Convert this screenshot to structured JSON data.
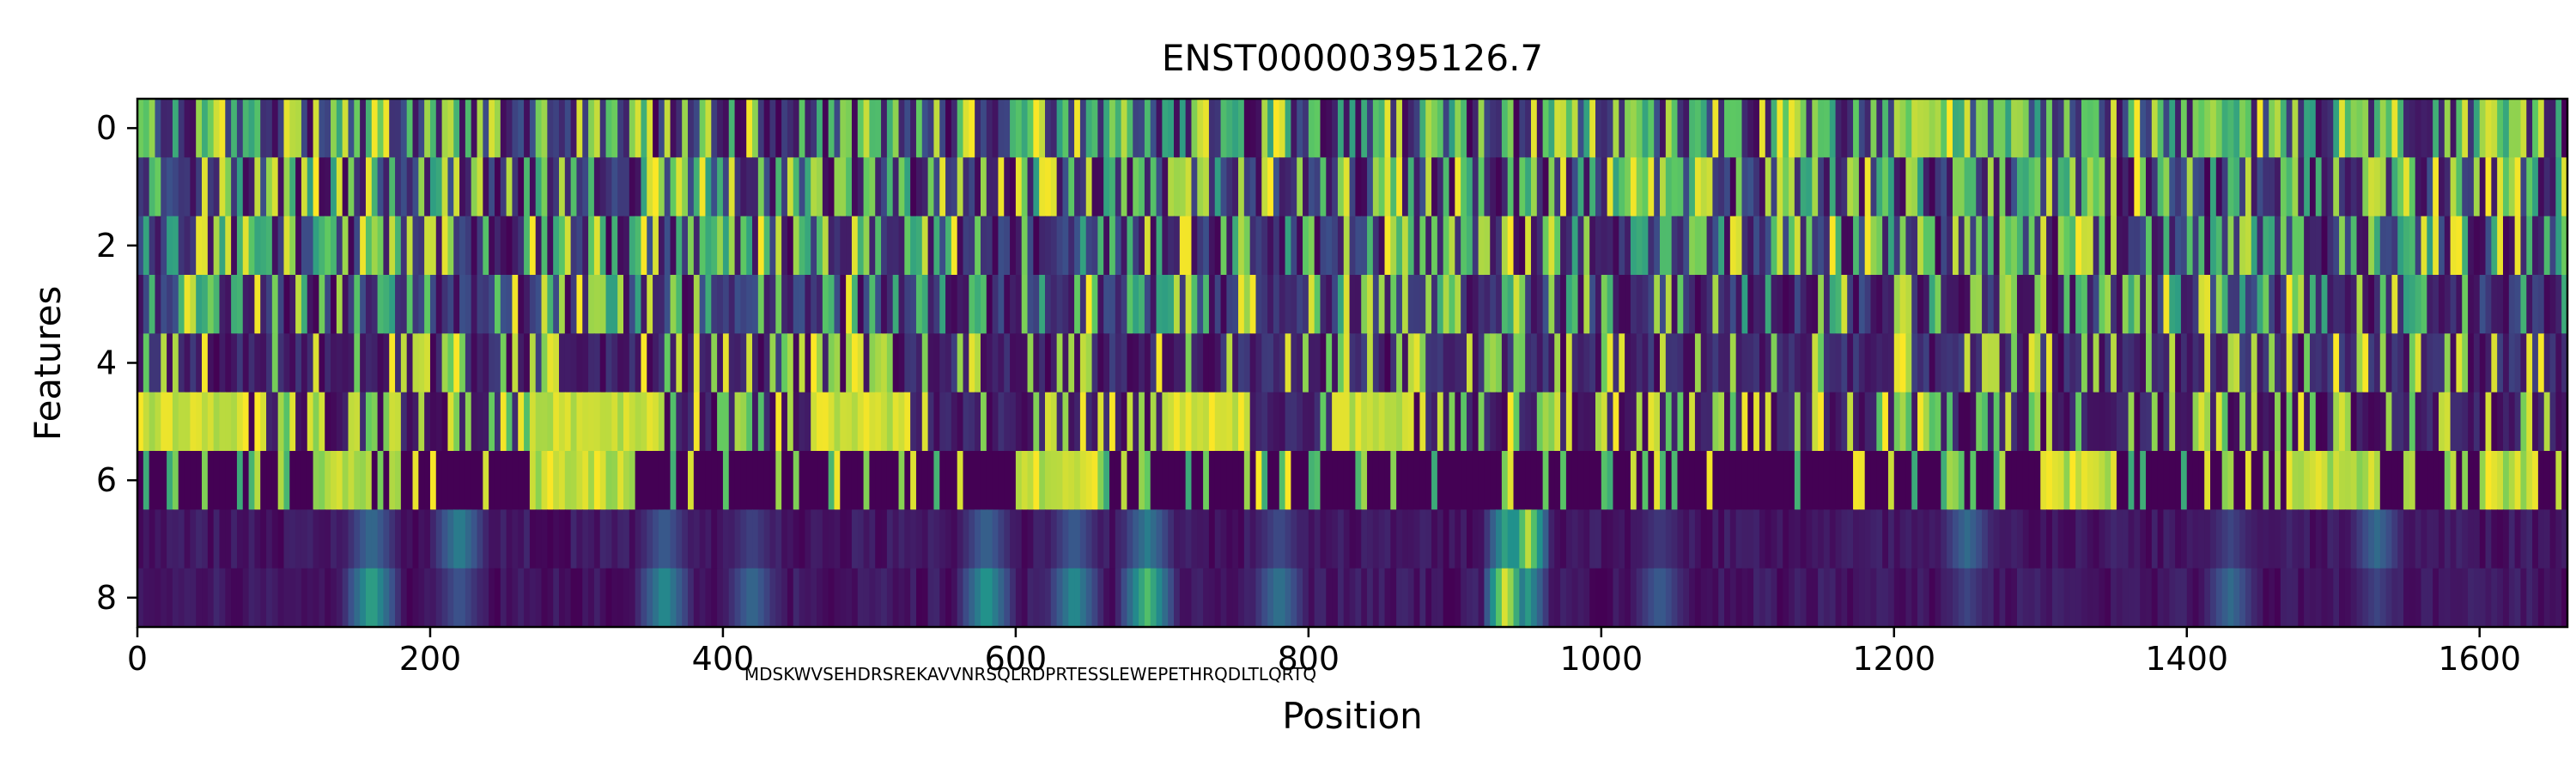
{
  "chart_data": {
    "type": "heatmap",
    "title": "ENST00000395126.7",
    "xlabel": "Position",
    "ylabel": "Features",
    "xlim": [
      0,
      1660
    ],
    "ylim": [
      8.5,
      -0.5
    ],
    "x_ticks": [
      0,
      200,
      400,
      600,
      800,
      1000,
      1200,
      1400,
      1600
    ],
    "x_tick_labels": [
      "0",
      "200",
      "400",
      "600",
      "800",
      "1000",
      "1200",
      "1400",
      "1600"
    ],
    "y_ticks": [
      0,
      2,
      4,
      6,
      8
    ],
    "y_tick_labels": [
      "0",
      "2",
      "4",
      "6",
      "8"
    ],
    "n_positions": 1660,
    "n_features": 9,
    "colormap": [
      "#440154",
      "#3b528b",
      "#21918c",
      "#5ec962",
      "#fde725"
    ],
    "value_range": [
      0,
      1
    ],
    "overlap_label": "MDSKWVSEHDRSREKAVVNRSQLRDPRTESSLEWEPETHRQDLTLQRTQ",
    "row_descriptions": [
      "rows 0-3: dense thin high-frequency stripes, high values at many positions",
      "row 4: sparse bright bands",
      "row 5: long bright blocks in regions where row 6 is dark",
      "row 6: bright blocks alternating with row 5",
      "row 7-8: diffuse low-to-medium values with bright spots near positions 160, 360, 580, 690 and 940"
    ],
    "hotspots": [
      {
        "x": 160,
        "feature": 8,
        "value": 0.6
      },
      {
        "x": 220,
        "feature": 7,
        "value": 0.45
      },
      {
        "x": 360,
        "feature": 8,
        "value": 0.5
      },
      {
        "x": 420,
        "feature": 8,
        "value": 0.35
      },
      {
        "x": 580,
        "feature": 8,
        "value": 0.55
      },
      {
        "x": 640,
        "feature": 8,
        "value": 0.5
      },
      {
        "x": 690,
        "feature": 8,
        "value": 0.7
      },
      {
        "x": 780,
        "feature": 8,
        "value": 0.4
      },
      {
        "x": 935,
        "feature": 8,
        "value": 1.0
      },
      {
        "x": 950,
        "feature": 7,
        "value": 0.9
      },
      {
        "x": 1040,
        "feature": 8,
        "value": 0.3
      },
      {
        "x": 1250,
        "feature": 7,
        "value": 0.35
      },
      {
        "x": 1430,
        "feature": 8,
        "value": 0.35
      },
      {
        "x": 1530,
        "feature": 7,
        "value": 0.35
      }
    ],
    "row5_blocks": [
      [
        0,
        75
      ],
      [
        270,
        360
      ],
      [
        460,
        520
      ],
      [
        700,
        760
      ],
      [
        820,
        870
      ]
    ],
    "row6_blocks": [
      [
        120,
        160
      ],
      [
        270,
        340
      ],
      [
        600,
        660
      ],
      [
        1300,
        1350
      ],
      [
        1470,
        1530
      ],
      [
        1600,
        1640
      ]
    ],
    "grid": false,
    "legend": "none"
  }
}
